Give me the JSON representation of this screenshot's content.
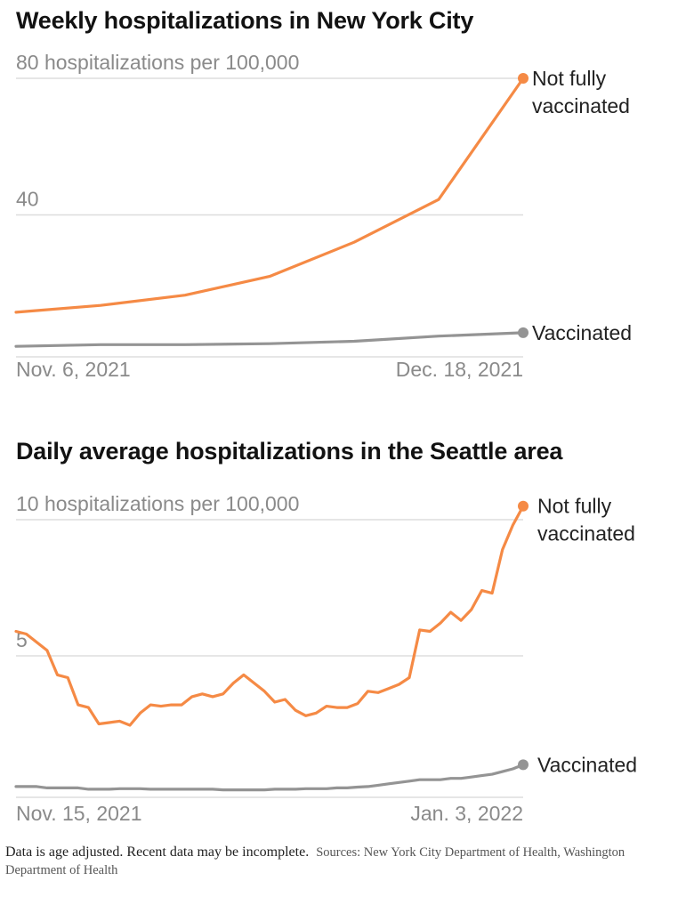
{
  "colors": {
    "not_fully_vaccinated": "#f58a45",
    "vaccinated": "#949494",
    "gridline": "#dddddd",
    "axis_text": "#8a8a8a"
  },
  "chart_data": [
    {
      "type": "line",
      "title": "Weekly hospitalizations in New York City",
      "y_unit_label": "hospitalizations per 100,000",
      "ylim": [
        0,
        80
      ],
      "y_ticks": [
        {
          "value": 80,
          "label": "80 hospitalizations per 100,000"
        },
        {
          "value": 40,
          "label": "40"
        }
      ],
      "x_tick_labels": [
        {
          "label": "Nov. 6, 2021",
          "align": "start"
        },
        {
          "label": "Dec. 18, 2021",
          "align": "end"
        }
      ],
      "x": [
        "2021-11-06",
        "2021-11-13",
        "2021-11-20",
        "2021-11-27",
        "2021-12-04",
        "2021-12-11",
        "2021-12-18"
      ],
      "grid": true,
      "series": [
        {
          "name": "Not fully vaccinated",
          "label_lines": [
            "Not fully",
            "vaccinated"
          ],
          "color_key": "not_fully_vaccinated",
          "values": [
            11.5,
            13.5,
            16.5,
            22,
            32,
            44.5,
            80
          ]
        },
        {
          "name": "Vaccinated",
          "label_lines": [
            "Vaccinated"
          ],
          "color_key": "vaccinated",
          "values": [
            1.5,
            2,
            2,
            2.3,
            3,
            4.5,
            5.5
          ]
        }
      ]
    },
    {
      "type": "line",
      "title": "Daily average hospitalizations in the Seattle area",
      "y_unit_label": "hospitalizations per 100,000",
      "ylim": [
        0,
        10
      ],
      "y_ticks": [
        {
          "value": 10,
          "label": "10 hospitalizations per 100,000"
        },
        {
          "value": 5,
          "label": "5"
        }
      ],
      "x_tick_labels": [
        {
          "label": "Nov. 15, 2021",
          "align": "start"
        },
        {
          "label": "Jan. 3, 2022",
          "align": "end"
        }
      ],
      "x_start": "2021-11-15",
      "x_end": "2022-01-03",
      "grid": true,
      "series": [
        {
          "name": "Not fully vaccinated",
          "label_lines": [
            "Not fully",
            "vaccinated"
          ],
          "color_key": "not_fully_vaccinated",
          "values": [
            5.9,
            5.8,
            5.5,
            5.2,
            4.3,
            4.2,
            3.2,
            3.1,
            2.5,
            2.55,
            2.6,
            2.45,
            2.9,
            3.2,
            3.15,
            3.2,
            3.2,
            3.5,
            3.6,
            3.5,
            3.6,
            4.0,
            4.3,
            4.0,
            3.7,
            3.3,
            3.4,
            3.0,
            2.8,
            2.9,
            3.15,
            3.1,
            3.1,
            3.25,
            3.7,
            3.65,
            3.8,
            3.95,
            4.2,
            5.95,
            5.9,
            6.2,
            6.6,
            6.3,
            6.7,
            7.4,
            7.3,
            8.9,
            9.8,
            10.5
          ]
        },
        {
          "name": "Vaccinated",
          "label_lines": [
            "Vaccinated"
          ],
          "color_key": "vaccinated",
          "values": [
            0.2,
            0.2,
            0.2,
            0.15,
            0.15,
            0.15,
            0.15,
            0.1,
            0.1,
            0.1,
            0.12,
            0.12,
            0.12,
            0.1,
            0.1,
            0.1,
            0.1,
            0.1,
            0.1,
            0.1,
            0.08,
            0.08,
            0.08,
            0.08,
            0.08,
            0.1,
            0.1,
            0.1,
            0.12,
            0.12,
            0.12,
            0.15,
            0.15,
            0.18,
            0.2,
            0.25,
            0.3,
            0.35,
            0.4,
            0.45,
            0.45,
            0.45,
            0.5,
            0.5,
            0.55,
            0.6,
            0.65,
            0.75,
            0.85,
            1.0
          ]
        }
      ]
    }
  ],
  "footnote": {
    "note": "Data is age adjusted. Recent data may be incomplete.",
    "sources": "Sources: New York City Department of Health, Washington Department of Health"
  }
}
